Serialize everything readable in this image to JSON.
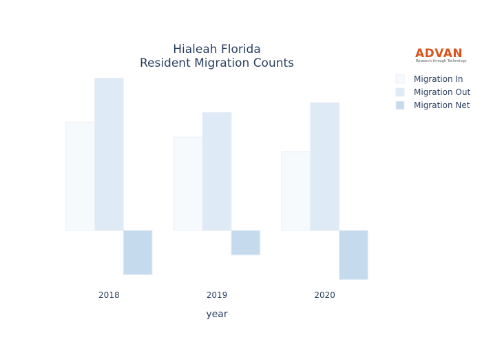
{
  "chart_data": {
    "type": "bar",
    "title_lines": [
      "Hialeah Florida",
      "Resident Migration Counts"
    ],
    "xlabel": "year",
    "ylabel": "",
    "categories": [
      "2018",
      "2019",
      "2020"
    ],
    "ylim": [
      -1050,
      3150
    ],
    "grid": false,
    "legend_position": "top-right",
    "series": [
      {
        "name": "Migration In",
        "values": [
          2200,
          1900,
          1600
        ],
        "color": "#f7fafd",
        "stroke": "#e8eef6"
      },
      {
        "name": "Migration Out",
        "values": [
          3100,
          2400,
          2600
        ],
        "color": "#deeaf6",
        "stroke": "#e8eef6"
      },
      {
        "name": "Migration Net",
        "values": [
          -900,
          -500,
          -1000
        ],
        "color": "#c6daee",
        "stroke": "#e8eef6"
      }
    ]
  },
  "logo": {
    "name": "ADVAN",
    "tagline": "Research through Technology",
    "color": "#d9541e"
  }
}
